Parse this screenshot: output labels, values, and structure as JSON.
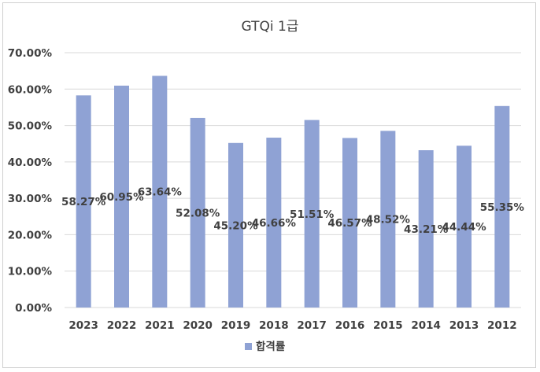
{
  "chart_data": {
    "type": "bar",
    "title": "GTQi 1급",
    "categories": [
      "2023",
      "2022",
      "2021",
      "2020",
      "2019",
      "2018",
      "2017",
      "2016",
      "2015",
      "2014",
      "2013",
      "2012"
    ],
    "series": [
      {
        "name": "합격률",
        "values": [
          58.27,
          60.95,
          63.64,
          52.08,
          45.2,
          46.66,
          51.51,
          46.57,
          48.52,
          43.21,
          44.44,
          55.35
        ],
        "labels": [
          "58.27%",
          "60.95%",
          "63.64%",
          "52.08%",
          "45.20%",
          "46.66%",
          "51.51%",
          "46.57%",
          "48.52%",
          "43.21%",
          "44.44%",
          "55.35%"
        ]
      }
    ],
    "yticks": [
      "0.00%",
      "10.00%",
      "20.00%",
      "30.00%",
      "40.00%",
      "50.00%",
      "60.00%",
      "70.00%"
    ],
    "ylim": [
      0,
      70
    ],
    "xlabel": "",
    "ylabel": "",
    "grid": true,
    "legend_position": "bottom",
    "bar_color": "#8fa2d4",
    "grid_color": "#d9d9d9"
  }
}
